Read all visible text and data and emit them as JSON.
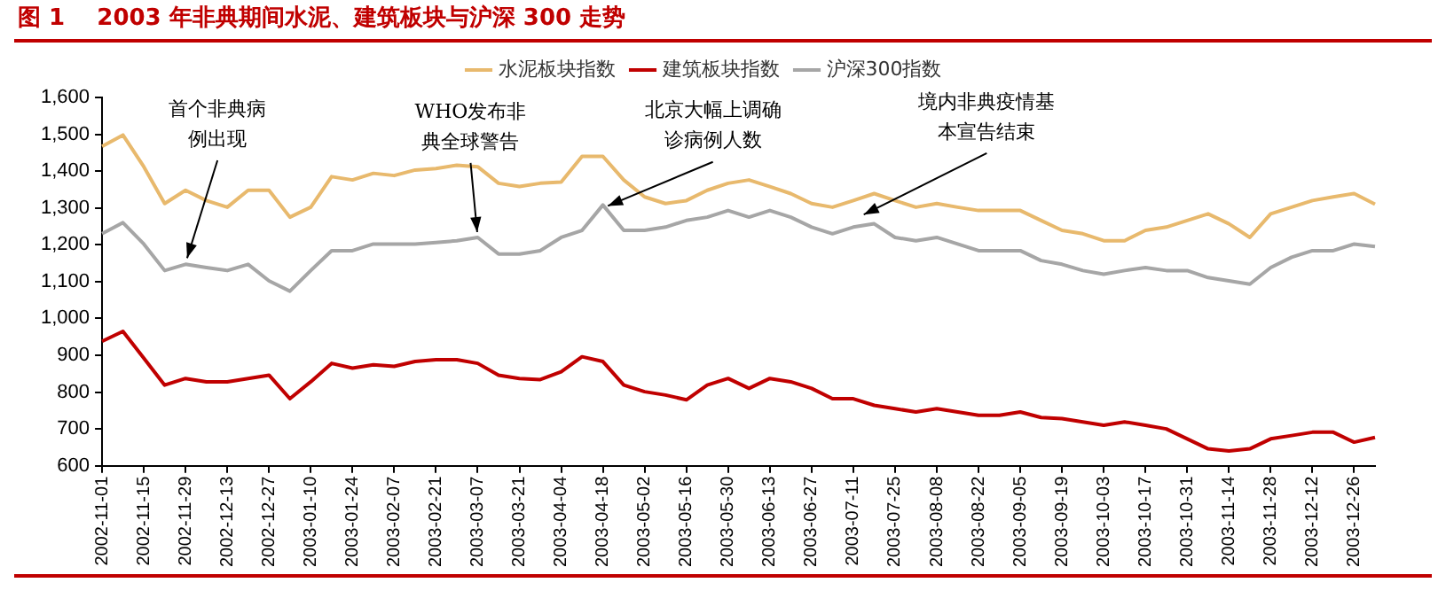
{
  "chart_data": {
    "type": "line",
    "title": "图 1    2003 年非典期间水泥、建筑板块与沪深 300 走势",
    "categories": [
      "2002-11-01",
      null,
      "2002-11-15",
      null,
      "2002-11-29",
      null,
      "2002-12-13",
      null,
      "2002-12-27",
      null,
      "2003-01-10",
      null,
      "2003-01-24",
      null,
      "2003-02-07",
      null,
      "2003-02-21",
      null,
      "2003-03-07",
      null,
      "2003-03-21",
      null,
      "2003-04-04",
      null,
      "2003-04-18",
      null,
      "2003-05-02",
      null,
      "2003-05-16",
      null,
      "2003-05-30",
      null,
      "2003-06-13",
      null,
      "2003-06-27",
      null,
      "2003-07-11",
      null,
      "2003-07-25",
      null,
      "2003-08-08",
      null,
      "2003-08-22",
      null,
      "2003-09-05",
      null,
      "2003-09-19",
      null,
      "2003-10-03",
      null,
      "2003-10-17",
      null,
      "2003-10-31",
      null,
      "2003-11-14",
      null,
      "2003-11-28",
      null,
      "2003-12-12",
      null,
      "2003-12-26",
      null
    ],
    "series": [
      {
        "name": "水泥板块指数",
        "color": "#e8b96d",
        "values": [
          1467,
          1498,
          1412,
          1312,
          1348,
          1320,
          1302,
          1348,
          1348,
          1275,
          1302,
          1385,
          1376,
          1394,
          1388,
          1403,
          1407,
          1416,
          1412,
          1367,
          1358,
          1367,
          1370,
          1440,
          1440,
          1376,
          1330,
          1312,
          1320,
          1348,
          1367,
          1376,
          1358,
          1339,
          1312,
          1302,
          1320,
          1339,
          1320,
          1302,
          1312,
          1302,
          1293,
          1293,
          1293,
          1266,
          1239,
          1230,
          1211,
          1211,
          1239,
          1248,
          1266,
          1284,
          1257,
          1220,
          1284,
          1302,
          1320,
          1330,
          1339,
          1310
        ]
      },
      {
        "name": "建筑板块指数",
        "color": "#c00000",
        "values": [
          938,
          965,
          892,
          819,
          837,
          828,
          828,
          837,
          846,
          782,
          828,
          878,
          865,
          874,
          870,
          883,
          888,
          888,
          878,
          846,
          837,
          834,
          855,
          896,
          883,
          819,
          801,
          792,
          779,
          819,
          837,
          810,
          837,
          828,
          810,
          782,
          782,
          764,
          755,
          746,
          755,
          746,
          737,
          737,
          746,
          731,
          728,
          719,
          710,
          719,
          710,
          700,
          673,
          646,
          640,
          646,
          673,
          682,
          691,
          691,
          664,
          677
        ]
      },
      {
        "name": "沪深300指数",
        "color": "#a6a6a6",
        "values": [
          1230,
          1260,
          1202,
          1130,
          1147,
          1138,
          1130,
          1147,
          1102,
          1074,
          1130,
          1184,
          1184,
          1202,
          1202,
          1202,
          1206,
          1211,
          1220,
          1175,
          1175,
          1184,
          1220,
          1239,
          1308,
          1239,
          1239,
          1248,
          1266,
          1275,
          1293,
          1275,
          1293,
          1275,
          1248,
          1230,
          1248,
          1257,
          1220,
          1211,
          1220,
          1202,
          1184,
          1184,
          1184,
          1157,
          1147,
          1130,
          1120,
          1130,
          1138,
          1130,
          1130,
          1111,
          1102,
          1093,
          1138,
          1166,
          1184,
          1184,
          1202,
          1195
        ]
      }
    ],
    "ylim": [
      600,
      1600
    ],
    "yticks": [
      600,
      700,
      800,
      900,
      {
        "value": 1000,
        "label": "1,000"
      },
      {
        "value": 1100,
        "label": "1,100"
      },
      {
        "value": 1200,
        "label": "1,200"
      },
      {
        "value": 1300,
        "label": "1,300"
      },
      {
        "value": 1400,
        "label": "1,400"
      },
      {
        "value": 1500,
        "label": "1,500"
      },
      {
        "value": 1600,
        "label": "1,600"
      }
    ],
    "annotations": [
      {
        "text": "首个非典病例出现",
        "x": "2002-11-29",
        "y": 1150
      },
      {
        "text": "WHO发布非典全球警告",
        "x": "2003-03-07",
        "y": 1220
      },
      {
        "text": "北京大幅上调确诊病例人数",
        "x": "2003-04-18",
        "y": 1300
      },
      "境内非典疫情基本宣告结束"
    ],
    "grid": false,
    "legend": "top",
    "marker": "none",
    "line_style": "solid"
  }
}
